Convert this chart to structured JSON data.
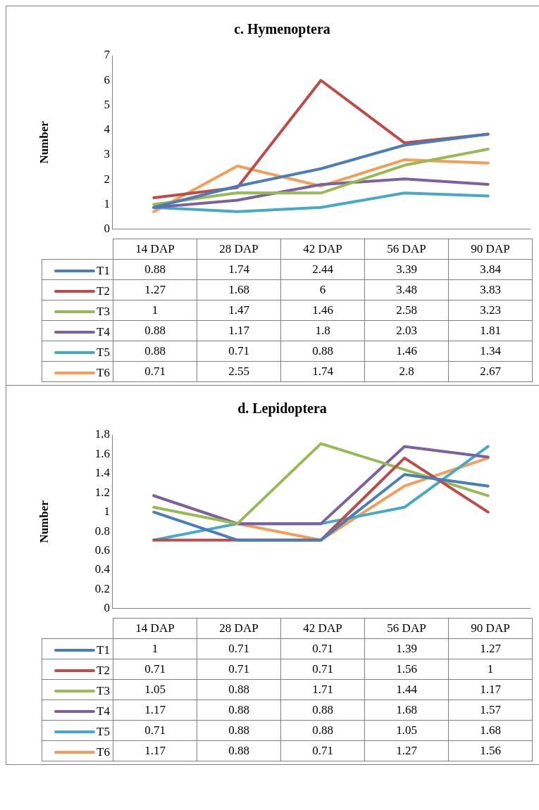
{
  "chart_data": [
    {
      "type": "line",
      "title": "c. Hymenoptera",
      "ylabel": "Number",
      "categories": [
        "14 DAP",
        "28 DAP",
        "42 DAP",
        "56 DAP",
        "90 DAP"
      ],
      "series": [
        {
          "name": "T1",
          "color": "#4a7ebb",
          "values": [
            0.88,
            1.74,
            2.44,
            3.39,
            3.84
          ]
        },
        {
          "name": "T2",
          "color": "#be4b48",
          "values": [
            1.27,
            1.68,
            6,
            3.48,
            3.83
          ]
        },
        {
          "name": "T3",
          "color": "#98b954",
          "values": [
            1,
            1.47,
            1.46,
            2.58,
            3.23
          ]
        },
        {
          "name": "T4",
          "color": "#7d60a0",
          "values": [
            0.88,
            1.17,
            1.8,
            2.03,
            1.81
          ]
        },
        {
          "name": "T5",
          "color": "#46aac5",
          "values": [
            0.88,
            0.71,
            0.88,
            1.46,
            1.34
          ]
        },
        {
          "name": "T6",
          "color": "#f59d56",
          "values": [
            0.71,
            2.55,
            1.74,
            2.8,
            2.67
          ]
        }
      ],
      "ylim": [
        0,
        7
      ],
      "yticks": [
        0,
        1,
        2,
        3,
        4,
        5,
        6,
        7
      ],
      "grid": false,
      "legend": "bottom left",
      "data_labels": true,
      "marker": "none",
      "line_style": "solid"
    },
    {
      "type": "line",
      "title": "d. Lepidoptera",
      "ylabel": "Number",
      "categories": [
        "14 DAP",
        "28 DAP",
        "42 DAP",
        "56 DAP",
        "90 DAP"
      ],
      "series": [
        {
          "name": "T1",
          "color": "#4a7ebb",
          "values": [
            1,
            0.71,
            0.71,
            1.39,
            1.27
          ]
        },
        {
          "name": "T2",
          "color": "#be4b48",
          "values": [
            0.71,
            0.71,
            0.71,
            1.56,
            1
          ]
        },
        {
          "name": "T3",
          "color": "#98b954",
          "values": [
            1.05,
            0.88,
            1.71,
            1.44,
            1.17
          ]
        },
        {
          "name": "T4",
          "color": "#7d60a0",
          "values": [
            1.17,
            0.88,
            0.88,
            1.68,
            1.57
          ]
        },
        {
          "name": "T5",
          "color": "#46aac5",
          "values": [
            0.71,
            0.88,
            0.88,
            1.05,
            1.68
          ]
        },
        {
          "name": "T6",
          "color": "#f59d56",
          "values": [
            1.17,
            0.88,
            0.71,
            1.27,
            1.56
          ]
        }
      ],
      "ylim": [
        0,
        1.8
      ],
      "yticks": [
        0,
        0.2,
        0.4,
        0.6,
        0.8,
        1,
        1.2,
        1.4,
        1.6,
        1.8
      ],
      "grid": false,
      "legend": "bottom left",
      "data_labels": true,
      "marker": "none",
      "line_style": "solid"
    }
  ]
}
